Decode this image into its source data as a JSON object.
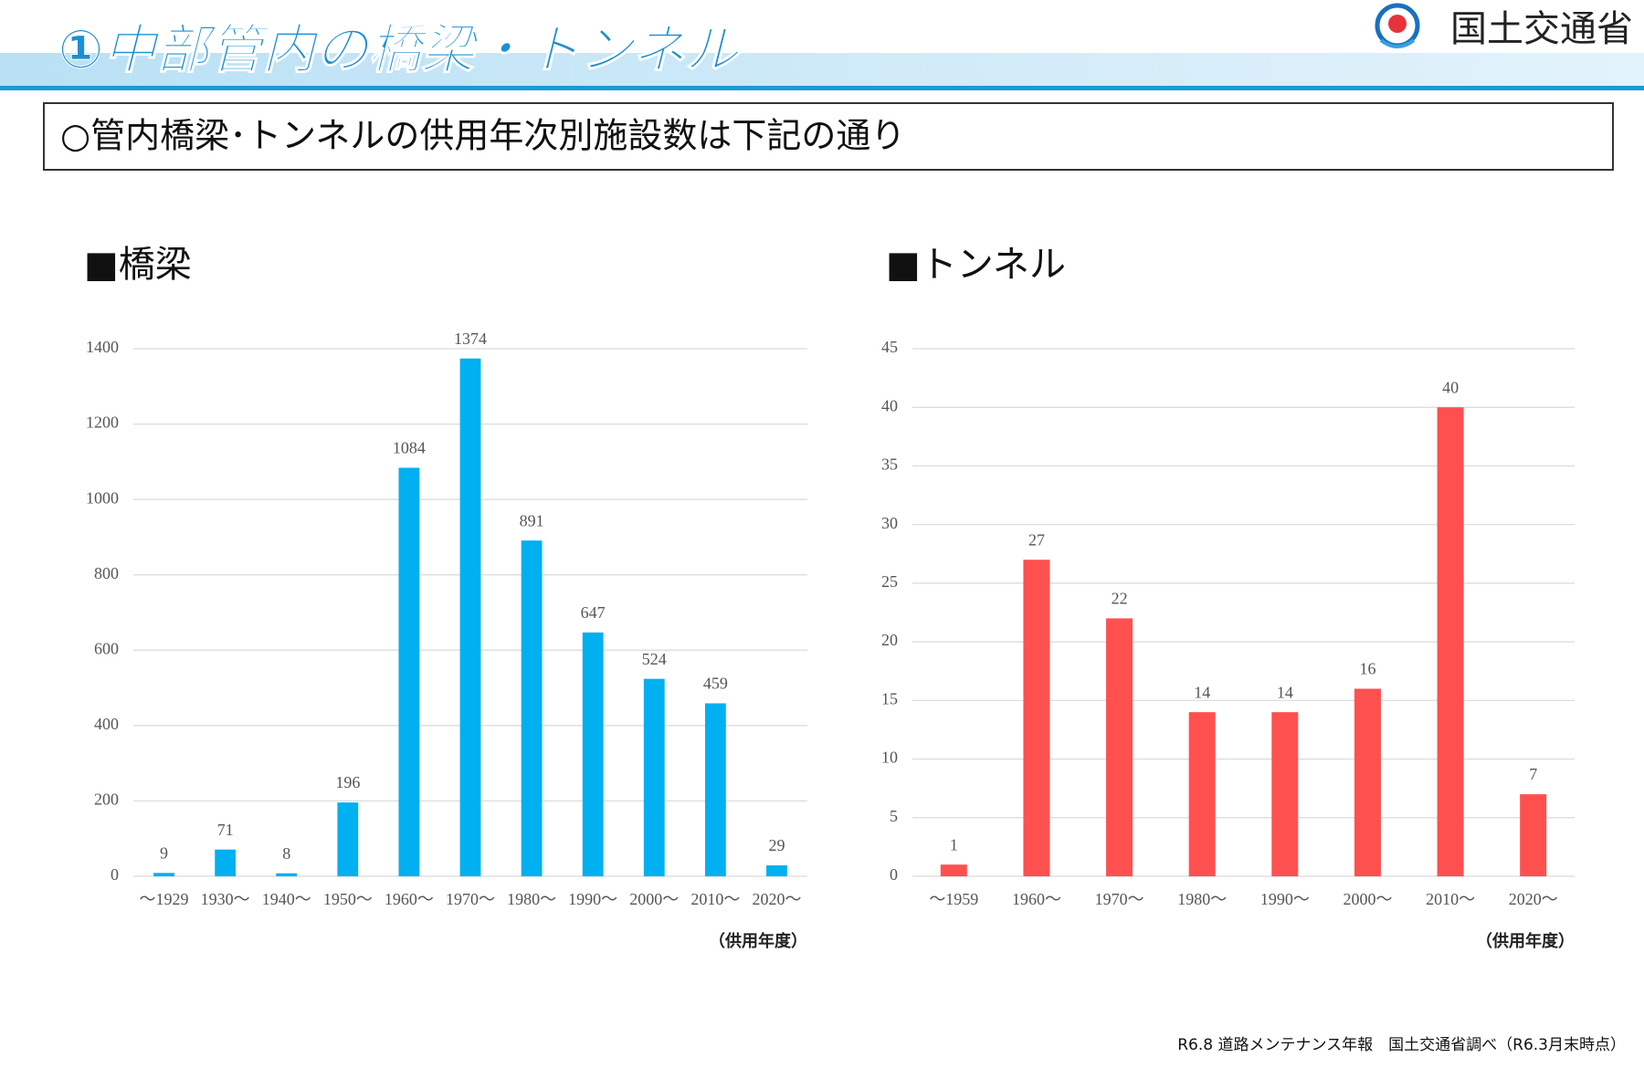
{
  "header": {
    "title": "①中部管内の橋梁・トンネル",
    "logo_text": "国土交通省"
  },
  "subtitle": "○管内橋梁･トンネルの供用年次別施設数は下記の通り",
  "chart_data": [
    {
      "type": "bar",
      "title": "■橋梁",
      "xlabel": "（供用年度）",
      "categories": [
        "～1929",
        "1930～",
        "1940～",
        "1950～",
        "1960～",
        "1970～",
        "1980～",
        "1990～",
        "2000～",
        "2010～",
        "2020～"
      ],
      "values": [
        9,
        71,
        8,
        196,
        1084,
        1374,
        891,
        647,
        524,
        459,
        29
      ],
      "color": "#00b0f0",
      "ylim": [
        0,
        1400
      ],
      "yticks": [
        0,
        200,
        400,
        600,
        800,
        1000,
        1200,
        1400
      ],
      "grid": true
    },
    {
      "type": "bar",
      "title": "■トンネル",
      "xlabel": "（供用年度）",
      "categories": [
        "～1959",
        "1960～",
        "1970～",
        "1980～",
        "1990～",
        "2000～",
        "2010～",
        "2020～"
      ],
      "values": [
        1,
        27,
        22,
        14,
        14,
        16,
        40,
        7
      ],
      "color": "#ff5050",
      "ylim": [
        0,
        45
      ],
      "yticks": [
        0,
        5,
        10,
        15,
        20,
        25,
        30,
        35,
        40,
        45
      ],
      "grid": true
    }
  ],
  "source": "R6.8 道路メンテナンス年報　国土交通省調べ（R6.3月末時点）"
}
